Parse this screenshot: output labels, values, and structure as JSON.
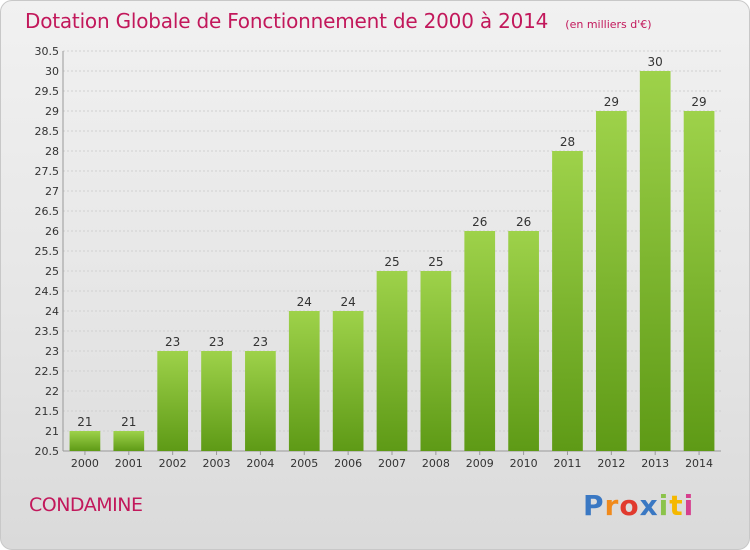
{
  "header": {
    "title": "Dotation Globale de Fonctionnement de 2000 à 2014",
    "subtitle": "(en milliers d'€)"
  },
  "footer": {
    "commune": "CONDAMINE",
    "brand": "Proxiti"
  },
  "colors": {
    "title": "#c2185b",
    "bar_top": "#9ed24a",
    "bar_bottom": "#5e9a16",
    "grid": "#d0d0d0"
  },
  "chart_data": {
    "type": "bar",
    "categories": [
      "2000",
      "2001",
      "2002",
      "2003",
      "2004",
      "2005",
      "2006",
      "2007",
      "2008",
      "2009",
      "2010",
      "2011",
      "2012",
      "2013",
      "2014"
    ],
    "values": [
      21,
      21,
      23,
      23,
      23,
      24,
      24,
      25,
      25,
      26,
      26,
      28,
      29,
      30,
      29
    ],
    "ylim": [
      20.5,
      30.5
    ],
    "yticks": [
      "20.5",
      "21",
      "21.5",
      "22",
      "22.5",
      "23",
      "23.5",
      "24",
      "24.5",
      "25",
      "25.5",
      "26",
      "26.5",
      "27",
      "27.5",
      "28",
      "28.5",
      "29",
      "29.5",
      "30",
      "30.5"
    ],
    "grid": true,
    "legend": "none"
  }
}
